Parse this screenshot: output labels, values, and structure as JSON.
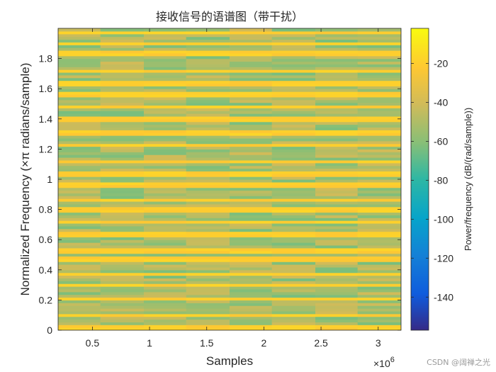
{
  "chart_data": {
    "type": "heatmap",
    "title": "接收信号的语谱图（带干扰）",
    "xlabel": "Samples",
    "ylabel": "Normalized Frequency (×π radians/sample)",
    "x_exponent_label": "×10",
    "x_exponent_power": "6",
    "xlim": [
      0.2,
      3.2
    ],
    "ylim": [
      0,
      2
    ],
    "x_ticks": [
      0.5,
      1,
      1.5,
      2,
      2.5,
      3
    ],
    "x_tick_labels": [
      "0.5",
      "1",
      "1.5",
      "2",
      "2.5",
      "3"
    ],
    "y_ticks": [
      0,
      0.2,
      0.4,
      0.6,
      0.8,
      1,
      1.2,
      1.4,
      1.6,
      1.8
    ],
    "y_tick_labels": [
      "0",
      "0.2",
      "0.4",
      "0.6",
      "0.8",
      "1",
      "1.2",
      "1.4",
      "1.6",
      "1.8"
    ],
    "time_segment_edges": [
      0.2,
      0.57,
      0.95,
      1.32,
      1.7,
      2.07,
      2.45,
      2.82,
      3.2
    ],
    "colorbar": {
      "label": "Power/frequency (dB/(rad/sample))",
      "range": [
        -157,
        -2
      ],
      "ticks": [
        -20,
        -40,
        -60,
        -80,
        -100,
        -120,
        -140
      ],
      "tick_labels": [
        "-20",
        "-40",
        "-60",
        "-80",
        "-100",
        "-120",
        "-140"
      ],
      "colormap": "parula"
    },
    "interference_bands_y": [
      0.02,
      0.1,
      0.21,
      0.3,
      0.37,
      0.47,
      0.53,
      0.64,
      0.72,
      0.8,
      0.86,
      0.96,
      1.04,
      1.12,
      1.23,
      1.31,
      1.4,
      1.48,
      1.56,
      1.64,
      1.72,
      1.84,
      1.9,
      1.97
    ],
    "background_level_db": -52,
    "interference_level_db": -20
  },
  "watermark": "CSDN @阔禅之光"
}
